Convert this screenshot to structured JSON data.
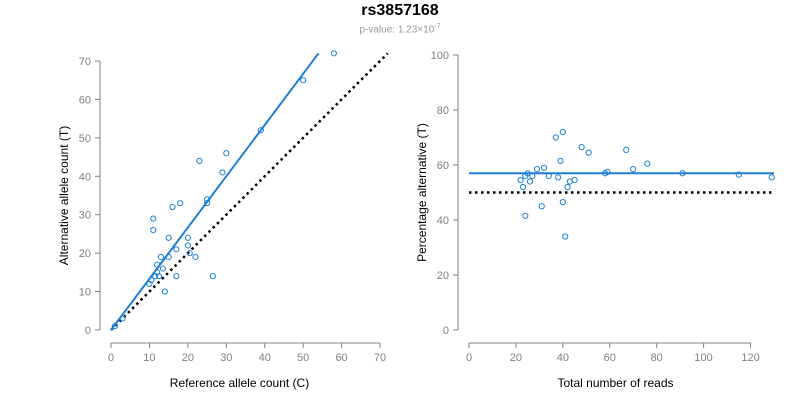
{
  "title": "rs3857168",
  "subtitle": {
    "prefix": "p-value: 1.23×10",
    "exponent": "-7"
  },
  "colors": {
    "series": "#1f7fd6",
    "reference_line": "#000000",
    "axis": "#808080"
  },
  "chart_data": [
    {
      "type": "scatter",
      "xlabel": "Reference allele count (C)",
      "ylabel": "Alternative allele count (T)",
      "xlim": [
        0,
        70
      ],
      "ylim": [
        0,
        70
      ],
      "xticks": [
        0,
        10,
        20,
        30,
        40,
        50,
        60,
        70
      ],
      "yticks": [
        0,
        10,
        20,
        30,
        40,
        50,
        60,
        70
      ],
      "grid": false,
      "points": {
        "x": [
          1,
          3,
          10,
          10.5,
          11,
          11,
          11.5,
          12,
          12,
          12.5,
          13,
          13.5,
          14,
          15,
          15,
          16,
          17,
          17,
          18,
          20,
          20,
          20.5,
          22,
          23,
          25,
          25,
          26.5,
          29,
          30,
          39,
          50,
          58
        ],
        "y": [
          1,
          3,
          12,
          13,
          29,
          26,
          14,
          15,
          17,
          14,
          19,
          16,
          10,
          19,
          24,
          32,
          14,
          21,
          33,
          24,
          22,
          20,
          19,
          44,
          33,
          34,
          14,
          41,
          46,
          52,
          65,
          72
        ]
      },
      "fit_line": {
        "x": [
          0,
          54
        ],
        "y": [
          0,
          72
        ]
      },
      "reference_line": {
        "x": [
          0,
          72
        ],
        "y": [
          0,
          72
        ]
      }
    },
    {
      "type": "scatter",
      "xlabel": "Total number of reads",
      "ylabel": "Percentage alternative (T)",
      "xlim": [
        0,
        130
      ],
      "ylim": [
        0,
        100
      ],
      "xticks": [
        0,
        20,
        40,
        60,
        80,
        100,
        120
      ],
      "yticks": [
        0,
        20,
        40,
        60,
        80,
        100
      ],
      "grid": false,
      "points": {
        "x": [
          22,
          23,
          24,
          24,
          25,
          26,
          27,
          29,
          31,
          32,
          34,
          37,
          38,
          39,
          40,
          40,
          41,
          42,
          43,
          45,
          48,
          51,
          58,
          59,
          67,
          70,
          76,
          91,
          115,
          129
        ],
        "y": [
          54.5,
          52,
          41.5,
          56,
          57,
          54,
          56,
          58.5,
          45,
          59,
          56,
          70,
          55.5,
          61.5,
          72,
          46.5,
          34,
          52,
          54,
          54.5,
          66.5,
          64.5,
          57,
          57.5,
          65.5,
          58.5,
          60.5,
          57,
          56.5,
          55.5
        ]
      },
      "fit_line": {
        "x": [
          0,
          130
        ],
        "y": [
          57,
          57
        ]
      },
      "reference_line": {
        "x": [
          0,
          130
        ],
        "y": [
          50,
          50
        ]
      }
    }
  ]
}
